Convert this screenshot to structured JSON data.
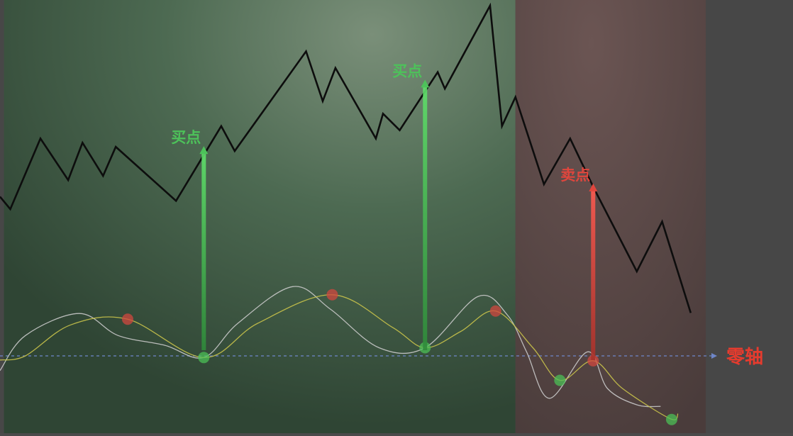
{
  "chart_data": {
    "type": "line",
    "title": "",
    "xlabel": "",
    "ylabel": "",
    "grid": false,
    "xlim": [
      0,
      100
    ],
    "price_ylim": [
      0,
      100
    ],
    "osc_ylim": [
      -1,
      1
    ],
    "regions": [
      {
        "name": "bullish-zone",
        "x0": 0.5,
        "x1": 65,
        "color": "#4f7657"
      },
      {
        "name": "bearish-zone",
        "x0": 65,
        "x1": 89,
        "color": "#5e4a48"
      }
    ],
    "price_series": {
      "color": "#0d0d0d",
      "points": [
        [
          0,
          54
        ],
        [
          1.3,
          51
        ],
        [
          5.1,
          68
        ],
        [
          8.6,
          58
        ],
        [
          10.4,
          67
        ],
        [
          13,
          59
        ],
        [
          14.6,
          66
        ],
        [
          22.2,
          53
        ],
        [
          27.9,
          71
        ],
        [
          29.6,
          65
        ],
        [
          38.6,
          89
        ],
        [
          40.7,
          77
        ],
        [
          42.3,
          85
        ],
        [
          47.4,
          68
        ],
        [
          48.3,
          74
        ],
        [
          50.4,
          70
        ],
        [
          55.2,
          84
        ],
        [
          56.1,
          80
        ],
        [
          61.8,
          100
        ],
        [
          63.3,
          71
        ],
        [
          65,
          78
        ],
        [
          68.6,
          57
        ],
        [
          71.9,
          68
        ],
        [
          74.9,
          56
        ],
        [
          80.3,
          36
        ],
        [
          83.5,
          48
        ],
        [
          87.1,
          26
        ]
      ]
    },
    "oscillator_series": [
      {
        "name": "fast",
        "color": "#c9c9c9",
        "points": [
          [
            0,
            -0.18
          ],
          [
            3.2,
            0.25
          ],
          [
            10,
            0.52
          ],
          [
            14.9,
            0.25
          ],
          [
            20.8,
            0.13
          ],
          [
            25.7,
            -0.02
          ],
          [
            30,
            0.4
          ],
          [
            36.9,
            0.85
          ],
          [
            41.7,
            0.57
          ],
          [
            47.8,
            0.1
          ],
          [
            53.6,
            0.1
          ],
          [
            60.3,
            0.73
          ],
          [
            64,
            0.5
          ],
          [
            66.4,
            0.05
          ],
          [
            69.3,
            -0.52
          ],
          [
            74.1,
            0.05
          ],
          [
            76.6,
            -0.4
          ],
          [
            80.3,
            -0.6
          ],
          [
            83.3,
            -0.62
          ]
        ]
      },
      {
        "name": "slow",
        "color": "#c8c24a",
        "points": [
          [
            0,
            -0.05
          ],
          [
            3.2,
            0
          ],
          [
            8.9,
            0.38
          ],
          [
            16.1,
            0.45
          ],
          [
            25.7,
            -0.02
          ],
          [
            32.5,
            0.4
          ],
          [
            41.9,
            0.75
          ],
          [
            49.5,
            0.35
          ],
          [
            53.6,
            0.1
          ],
          [
            58.1,
            0.3
          ],
          [
            62.5,
            0.55
          ],
          [
            67.2,
            0.1
          ],
          [
            70.6,
            -0.3
          ],
          [
            74.8,
            -0.06
          ],
          [
            78.5,
            -0.4
          ],
          [
            84.5,
            -0.77
          ],
          [
            85.5,
            -0.71
          ]
        ]
      }
    ],
    "markers": [
      {
        "kind": "buy",
        "x": 25.7,
        "y": -0.02,
        "color": "#4bbf55"
      },
      {
        "kind": "buy",
        "x": 53.6,
        "y": 0.1,
        "color": "#4bbf55"
      },
      {
        "kind": "buy",
        "x": 70.6,
        "y": -0.3,
        "color": "#4bbf55"
      },
      {
        "kind": "buy",
        "x": 84.7,
        "y": -0.78,
        "color": "#4bbf55"
      },
      {
        "kind": "sell",
        "x": 16.1,
        "y": 0.45,
        "color": "#d0473f"
      },
      {
        "kind": "sell",
        "x": 41.9,
        "y": 0.75,
        "color": "#d0473f"
      },
      {
        "kind": "sell",
        "x": 62.5,
        "y": 0.55,
        "color": "#d0473f"
      },
      {
        "kind": "sell",
        "x": 74.8,
        "y": -0.06,
        "color": "#d0473f"
      }
    ],
    "signals": [
      {
        "label": "买点",
        "x": 25.7,
        "price_y": 66,
        "color": "#4dc25a"
      },
      {
        "label": "买点",
        "x": 53.6,
        "price_y": 82,
        "color": "#4dc25a"
      },
      {
        "label": "卖点",
        "x": 74.8,
        "price_y": 57,
        "color": "#e0463d"
      }
    ],
    "zero_axis": {
      "label": "零轴",
      "value": 0,
      "color": "#6e86c8",
      "label_color": "#e63b2e"
    }
  }
}
